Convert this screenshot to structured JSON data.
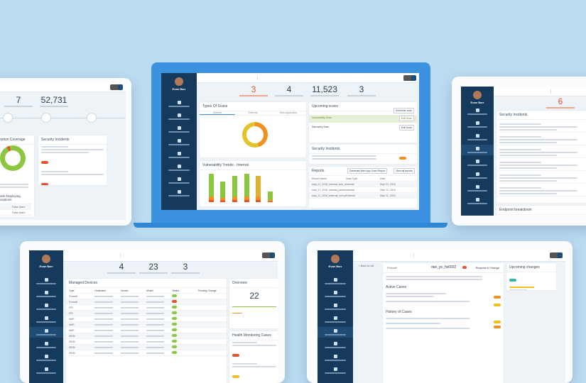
{
  "user": {
    "name": "Evan Barr"
  },
  "laptop": {
    "stats": [
      {
        "value": "3",
        "color": "#e8512d"
      },
      {
        "value": "4"
      },
      {
        "value": "11,523"
      },
      {
        "value": "3"
      }
    ],
    "types_of_scans": {
      "title": "Types Of Scans",
      "tabs": [
        "Internal",
        "External",
        "Web Application"
      ]
    },
    "upcoming": {
      "title": "Upcoming scans",
      "schedule": "Schedule scan",
      "items": [
        {
          "name": "Vulnerability Scan",
          "action": "Edit Scan"
        },
        {
          "name": "Discovery Scan",
          "action": "Edit Scan"
        }
      ]
    },
    "incidents": {
      "title": "Security Incidents"
    },
    "reports": {
      "title": "Reports",
      "generate": "Generate Web App Scan Report",
      "view_all": "View all reports",
      "columns": [
        "Report Name",
        "Scan Type",
        "Date"
      ],
      "rows": [
        [
          "sept_21_2016_internal_vuln_all.pdf",
          "Internal",
          "Sept 21, 2016"
        ],
        [
          "sept_17_2016_internal_pcidss_all.pdf",
          "Internal",
          "Sept 17, 2016"
        ],
        [
          "sept_11_2016_external_vuln.pdf",
          "External",
          "Sept 11, 2016"
        ]
      ]
    },
    "trends": {
      "title": "Vulnerability Trends - Internal",
      "bars": [
        90,
        65,
        85,
        90,
        85,
        35
      ]
    },
    "donut_colors": {
      "primary": "#f0a020",
      "secondary": "#e2c42a"
    }
  },
  "left_tablet": {
    "stats": [
      {
        "value": "7"
      },
      {
        "value": "52,731"
      }
    ],
    "coverage_title": "Deception Coverage",
    "incidents_title": "Security Incidents",
    "assets_title": "Assets Deploying Deceptions",
    "asset_action": "False Alarm"
  },
  "right_tablet": {
    "stat": {
      "value": "6",
      "color": "#e8512d"
    },
    "incidents_title": "Security Incidents",
    "endpoint_title": "Endpoint breakdown"
  },
  "bottom_left": {
    "stats": [
      {
        "value": "4"
      },
      {
        "value": "23"
      },
      {
        "value": "3"
      }
    ],
    "devices_title": "Managed Devices",
    "columns": [
      "Type",
      "Hostname",
      "Vendor",
      "Model",
      "Status",
      "Pending Change"
    ],
    "types": [
      "Firewall",
      "Firewall",
      "IPS",
      "IPS",
      "WAF",
      "WAF",
      "WAF",
      "SIEM",
      "SIEM",
      "SIEM",
      "SIEM"
    ],
    "statuses": [
      "ok",
      "error",
      "ok",
      "ok",
      "ok",
      "ok",
      "ok",
      "ok",
      "ok",
      "ok",
      "ok"
    ],
    "overview_title": "Overview",
    "overview_value": "22",
    "health_title": "Health Monitoring Cases"
  },
  "bottom_right": {
    "back": "< Back to List",
    "device": "dan_pc_fw0002",
    "request": "Request A Change",
    "type": "Firewall",
    "active_title": "Active Cases",
    "history_title": "History of Cases",
    "upcoming_title": "Upcoming changes"
  }
}
